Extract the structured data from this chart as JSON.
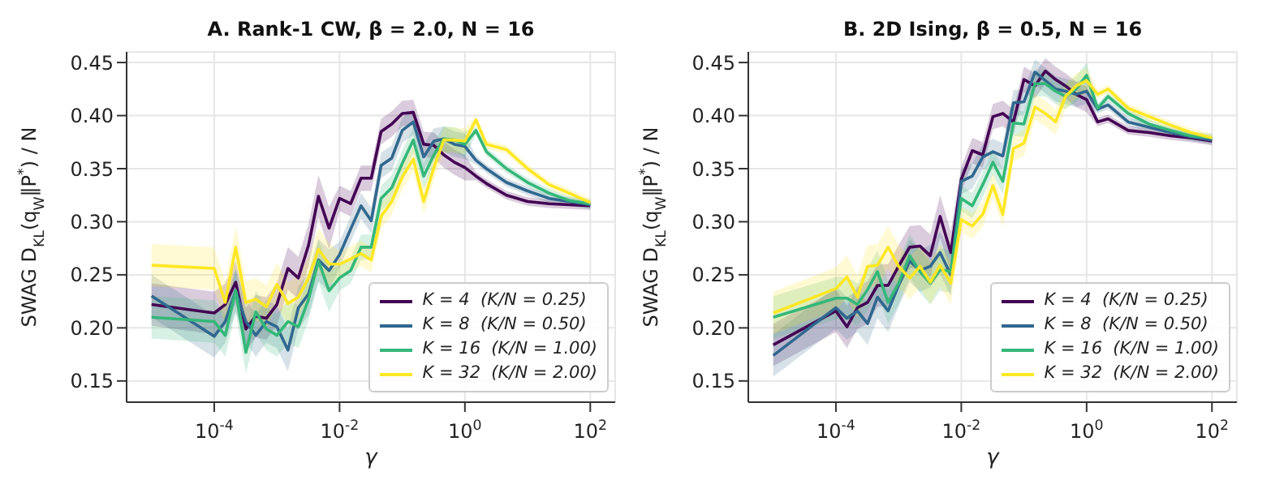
{
  "chart_data": [
    {
      "type": "line",
      "title": "A.  Rank-1 CW, β = 2.0, N = 16",
      "xlabel": "γ",
      "ylabel": "SWAG D$_{KL}$(q$_{W}$‖P$^{*}$) / N",
      "log": "x",
      "grid": true,
      "legend": "bottom right",
      "x": [
        1e-05,
        0.0001,
        0.00015,
        0.00022,
        0.00032,
        0.00046,
        0.00068,
        0.001,
        0.0015,
        0.0022,
        0.0032,
        0.0046,
        0.0068,
        0.01,
        0.015,
        0.022,
        0.032,
        0.046,
        0.068,
        0.1,
        0.15,
        0.22,
        0.32,
        0.46,
        0.68,
        1,
        1.5,
        2.2,
        4.6,
        10,
        22,
        46,
        100
      ],
      "xlim": [
        4e-06,
        250
      ],
      "xticks": [
        {
          "value": 0.0001,
          "label": "10$^{-4}$"
        },
        {
          "value": 0.01,
          "label": "10$^{-2}$"
        },
        {
          "value": 1,
          "label": "10$^{0}$"
        },
        {
          "value": 100,
          "label": "10$^{2}$"
        }
      ],
      "ylim": [
        0.13,
        0.46
      ],
      "yticks": [
        0.15,
        {
          "value": 0.2,
          "label": "0.20"
        },
        0.25,
        {
          "value": 0.3,
          "label": "0.30"
        },
        0.35,
        {
          "value": 0.4,
          "label": "0.40"
        },
        0.45
      ],
      "series": [
        {
          "name": "K = 4  (K/N = 0.25)",
          "color": "#440154",
          "values": [
            0.222,
            0.214,
            0.222,
            0.243,
            0.199,
            0.211,
            0.209,
            0.222,
            0.256,
            0.247,
            0.278,
            0.324,
            0.294,
            0.322,
            0.317,
            0.341,
            0.341,
            0.385,
            0.392,
            0.402,
            0.403,
            0.373,
            0.372,
            0.363,
            0.356,
            0.351,
            0.343,
            0.336,
            0.325,
            0.319,
            0.317,
            0.316,
            0.315
          ],
          "lower": [
            0.202,
            0.194,
            0.202,
            0.223,
            0.179,
            0.191,
            0.189,
            0.202,
            0.236,
            0.227,
            0.258,
            0.304,
            0.274,
            0.31,
            0.305,
            0.329,
            0.329,
            0.373,
            0.38,
            0.39,
            0.391,
            0.361,
            0.36,
            0.351,
            0.344,
            0.339,
            0.339,
            0.332,
            0.321,
            0.315,
            0.313,
            0.312,
            0.311
          ],
          "upper": [
            0.242,
            0.234,
            0.242,
            0.263,
            0.219,
            0.231,
            0.229,
            0.242,
            0.276,
            0.267,
            0.298,
            0.344,
            0.314,
            0.334,
            0.329,
            0.353,
            0.353,
            0.397,
            0.404,
            0.414,
            0.415,
            0.385,
            0.384,
            0.375,
            0.368,
            0.363,
            0.347,
            0.34,
            0.329,
            0.323,
            0.321,
            0.32,
            0.319
          ]
        },
        {
          "name": "K = 8  (K/N = 0.50)",
          "color": "#31688e",
          "values": [
            0.23,
            0.192,
            0.206,
            0.235,
            0.206,
            0.193,
            0.206,
            0.201,
            0.179,
            0.219,
            0.232,
            0.264,
            0.254,
            0.269,
            0.293,
            0.315,
            0.301,
            0.353,
            0.36,
            0.386,
            0.394,
            0.361,
            0.376,
            0.378,
            0.373,
            0.371,
            0.358,
            0.35,
            0.337,
            0.329,
            0.322,
            0.319,
            0.316
          ],
          "lower": [
            0.21,
            0.172,
            0.186,
            0.215,
            0.186,
            0.173,
            0.186,
            0.181,
            0.159,
            0.199,
            0.212,
            0.244,
            0.234,
            0.257,
            0.281,
            0.303,
            0.289,
            0.341,
            0.348,
            0.374,
            0.382,
            0.349,
            0.364,
            0.366,
            0.361,
            0.359,
            0.354,
            0.346,
            0.333,
            0.325,
            0.318,
            0.315,
            0.312
          ],
          "upper": [
            0.25,
            0.212,
            0.226,
            0.255,
            0.226,
            0.213,
            0.226,
            0.221,
            0.199,
            0.239,
            0.252,
            0.284,
            0.274,
            0.281,
            0.305,
            0.327,
            0.313,
            0.365,
            0.372,
            0.398,
            0.406,
            0.373,
            0.388,
            0.39,
            0.385,
            0.383,
            0.362,
            0.354,
            0.341,
            0.333,
            0.326,
            0.323,
            0.32
          ]
        },
        {
          "name": "K = 16  (K/N = 1.00)",
          "color": "#35b779",
          "values": [
            0.21,
            0.206,
            0.193,
            0.235,
            0.177,
            0.215,
            0.199,
            0.193,
            0.206,
            0.201,
            0.227,
            0.263,
            0.235,
            0.247,
            0.254,
            0.276,
            0.276,
            0.322,
            0.332,
            0.355,
            0.377,
            0.343,
            0.363,
            0.378,
            0.377,
            0.373,
            0.386,
            0.366,
            0.35,
            0.337,
            0.327,
            0.32,
            0.317
          ],
          "lower": [
            0.19,
            0.186,
            0.173,
            0.215,
            0.157,
            0.195,
            0.179,
            0.173,
            0.186,
            0.181,
            0.207,
            0.243,
            0.215,
            0.235,
            0.242,
            0.264,
            0.264,
            0.31,
            0.32,
            0.343,
            0.365,
            0.331,
            0.351,
            0.366,
            0.365,
            0.361,
            0.382,
            0.362,
            0.346,
            0.333,
            0.323,
            0.316,
            0.313
          ],
          "upper": [
            0.23,
            0.226,
            0.213,
            0.255,
            0.197,
            0.235,
            0.219,
            0.213,
            0.226,
            0.221,
            0.247,
            0.283,
            0.255,
            0.259,
            0.266,
            0.288,
            0.288,
            0.334,
            0.344,
            0.367,
            0.389,
            0.355,
            0.375,
            0.39,
            0.389,
            0.385,
            0.39,
            0.37,
            0.354,
            0.341,
            0.331,
            0.324,
            0.321
          ]
        },
        {
          "name": "K = 32  (K/N = 2.00)",
          "color": "#fde725",
          "values": [
            0.259,
            0.256,
            0.224,
            0.276,
            0.224,
            0.227,
            0.22,
            0.241,
            0.223,
            0.229,
            0.247,
            0.274,
            0.26,
            0.26,
            0.265,
            0.27,
            0.264,
            0.305,
            0.319,
            0.342,
            0.359,
            0.319,
            0.351,
            0.377,
            0.377,
            0.376,
            0.396,
            0.373,
            0.368,
            0.35,
            0.335,
            0.327,
            0.318
          ],
          "lower": [
            0.239,
            0.236,
            0.204,
            0.256,
            0.204,
            0.207,
            0.2,
            0.221,
            0.203,
            0.209,
            0.227,
            0.254,
            0.24,
            0.248,
            0.253,
            0.258,
            0.252,
            0.293,
            0.307,
            0.33,
            0.347,
            0.307,
            0.339,
            0.365,
            0.365,
            0.364,
            0.392,
            0.369,
            0.364,
            0.346,
            0.331,
            0.323,
            0.314
          ],
          "upper": [
            0.279,
            0.276,
            0.244,
            0.296,
            0.244,
            0.247,
            0.24,
            0.261,
            0.243,
            0.249,
            0.267,
            0.294,
            0.28,
            0.272,
            0.277,
            0.282,
            0.276,
            0.317,
            0.331,
            0.354,
            0.371,
            0.331,
            0.363,
            0.389,
            0.389,
            0.388,
            0.4,
            0.377,
            0.372,
            0.354,
            0.339,
            0.331,
            0.322
          ]
        }
      ]
    },
    {
      "type": "line",
      "title": "B.  2D Ising, β = 0.5, N = 16",
      "xlabel": "γ",
      "ylabel": "SWAG D$_{KL}$(q$_{W}$‖P$^{*}$) / N",
      "log": "x",
      "grid": true,
      "legend": "bottom right",
      "x": [
        1e-05,
        0.0001,
        0.00015,
        0.00022,
        0.00032,
        0.00046,
        0.00068,
        0.001,
        0.0015,
        0.0022,
        0.0032,
        0.0046,
        0.0068,
        0.01,
        0.015,
        0.022,
        0.032,
        0.046,
        0.068,
        0.1,
        0.15,
        0.22,
        0.32,
        0.46,
        0.68,
        1,
        1.5,
        2.2,
        4.6,
        10,
        22,
        46,
        100
      ],
      "xlim": [
        4e-06,
        250
      ],
      "xticks": [
        {
          "value": 0.0001,
          "label": "10$^{-4}$"
        },
        {
          "value": 0.01,
          "label": "10$^{-2}$"
        },
        {
          "value": 1,
          "label": "10$^{0}$"
        },
        {
          "value": 100,
          "label": "10$^{2}$"
        }
      ],
      "ylim": [
        0.13,
        0.46
      ],
      "yticks": [
        0.15,
        {
          "value": 0.2,
          "label": "0.20"
        },
        0.25,
        {
          "value": 0.3,
          "label": "0.30"
        },
        0.35,
        {
          "value": 0.4,
          "label": "0.40"
        },
        0.45
      ],
      "series": [
        {
          "name": "K = 4  (K/N = 0.25)",
          "color": "#440154",
          "values": [
            0.184,
            0.216,
            0.201,
            0.219,
            0.224,
            0.24,
            0.24,
            0.258,
            0.276,
            0.277,
            0.268,
            0.305,
            0.271,
            0.34,
            0.367,
            0.363,
            0.399,
            0.402,
            0.394,
            0.434,
            0.428,
            0.442,
            0.434,
            0.428,
            0.42,
            0.415,
            0.394,
            0.397,
            0.386,
            0.384,
            0.381,
            0.379,
            0.376
          ],
          "lower": [
            0.164,
            0.196,
            0.181,
            0.199,
            0.204,
            0.22,
            0.22,
            0.238,
            0.256,
            0.257,
            0.248,
            0.285,
            0.251,
            0.328,
            0.355,
            0.351,
            0.387,
            0.39,
            0.382,
            0.422,
            0.416,
            0.43,
            0.422,
            0.416,
            0.408,
            0.403,
            0.39,
            0.393,
            0.382,
            0.38,
            0.377,
            0.375,
            0.372
          ],
          "upper": [
            0.204,
            0.236,
            0.221,
            0.239,
            0.244,
            0.26,
            0.26,
            0.278,
            0.296,
            0.297,
            0.288,
            0.325,
            0.291,
            0.352,
            0.379,
            0.375,
            0.411,
            0.414,
            0.406,
            0.446,
            0.44,
            0.454,
            0.446,
            0.44,
            0.432,
            0.427,
            0.398,
            0.401,
            0.39,
            0.388,
            0.385,
            0.383,
            0.38
          ]
        },
        {
          "name": "K = 8  (K/N = 0.50)",
          "color": "#31688e",
          "values": [
            0.174,
            0.219,
            0.209,
            0.216,
            0.204,
            0.229,
            0.216,
            0.24,
            0.263,
            0.254,
            0.258,
            0.271,
            0.25,
            0.338,
            0.343,
            0.361,
            0.366,
            0.362,
            0.412,
            0.413,
            0.441,
            0.433,
            0.425,
            0.423,
            0.42,
            0.423,
            0.406,
            0.41,
            0.394,
            0.389,
            0.384,
            0.38,
            0.377
          ],
          "lower": [
            0.154,
            0.199,
            0.189,
            0.196,
            0.184,
            0.209,
            0.196,
            0.22,
            0.243,
            0.234,
            0.238,
            0.251,
            0.23,
            0.326,
            0.331,
            0.349,
            0.354,
            0.35,
            0.4,
            0.401,
            0.429,
            0.421,
            0.413,
            0.411,
            0.408,
            0.411,
            0.402,
            0.406,
            0.39,
            0.385,
            0.38,
            0.376,
            0.373
          ],
          "upper": [
            0.194,
            0.239,
            0.229,
            0.236,
            0.224,
            0.249,
            0.236,
            0.26,
            0.283,
            0.274,
            0.278,
            0.291,
            0.27,
            0.35,
            0.355,
            0.373,
            0.378,
            0.374,
            0.424,
            0.425,
            0.453,
            0.445,
            0.437,
            0.435,
            0.432,
            0.435,
            0.41,
            0.414,
            0.398,
            0.393,
            0.388,
            0.384,
            0.381
          ]
        },
        {
          "name": "K = 16  (K/N = 1.00)",
          "color": "#35b779",
          "values": [
            0.21,
            0.228,
            0.228,
            0.222,
            0.236,
            0.253,
            0.224,
            0.242,
            0.268,
            0.253,
            0.242,
            0.255,
            0.253,
            0.322,
            0.315,
            0.335,
            0.356,
            0.338,
            0.393,
            0.392,
            0.43,
            0.43,
            0.423,
            0.418,
            0.425,
            0.438,
            0.407,
            0.418,
            0.402,
            0.392,
            0.386,
            0.381,
            0.379
          ],
          "lower": [
            0.19,
            0.208,
            0.208,
            0.202,
            0.216,
            0.233,
            0.204,
            0.222,
            0.248,
            0.233,
            0.222,
            0.235,
            0.233,
            0.31,
            0.303,
            0.323,
            0.344,
            0.326,
            0.381,
            0.38,
            0.418,
            0.418,
            0.411,
            0.406,
            0.413,
            0.426,
            0.403,
            0.414,
            0.398,
            0.388,
            0.382,
            0.377,
            0.375
          ],
          "upper": [
            0.23,
            0.248,
            0.248,
            0.242,
            0.256,
            0.273,
            0.244,
            0.262,
            0.288,
            0.273,
            0.262,
            0.275,
            0.273,
            0.334,
            0.327,
            0.347,
            0.368,
            0.35,
            0.405,
            0.404,
            0.442,
            0.442,
            0.435,
            0.43,
            0.437,
            0.45,
            0.411,
            0.422,
            0.406,
            0.396,
            0.39,
            0.385,
            0.383
          ]
        },
        {
          "name": "K = 32  (K/N = 2.00)",
          "color": "#fde725",
          "values": [
            0.214,
            0.237,
            0.248,
            0.229,
            0.258,
            0.259,
            0.276,
            0.258,
            0.247,
            0.258,
            0.243,
            0.259,
            0.242,
            0.302,
            0.296,
            0.307,
            0.334,
            0.307,
            0.369,
            0.374,
            0.408,
            0.402,
            0.394,
            0.418,
            0.428,
            0.433,
            0.42,
            0.425,
            0.407,
            0.399,
            0.391,
            0.384,
            0.379
          ],
          "lower": [
            0.194,
            0.217,
            0.228,
            0.209,
            0.238,
            0.239,
            0.256,
            0.238,
            0.227,
            0.238,
            0.223,
            0.239,
            0.222,
            0.29,
            0.284,
            0.295,
            0.322,
            0.295,
            0.357,
            0.362,
            0.396,
            0.39,
            0.382,
            0.406,
            0.416,
            0.421,
            0.416,
            0.421,
            0.403,
            0.395,
            0.387,
            0.38,
            0.375
          ],
          "upper": [
            0.234,
            0.257,
            0.268,
            0.249,
            0.278,
            0.279,
            0.296,
            0.278,
            0.267,
            0.278,
            0.263,
            0.279,
            0.262,
            0.314,
            0.308,
            0.319,
            0.346,
            0.319,
            0.381,
            0.386,
            0.42,
            0.414,
            0.406,
            0.43,
            0.44,
            0.445,
            0.424,
            0.429,
            0.411,
            0.403,
            0.395,
            0.388,
            0.383
          ]
        }
      ]
    }
  ]
}
